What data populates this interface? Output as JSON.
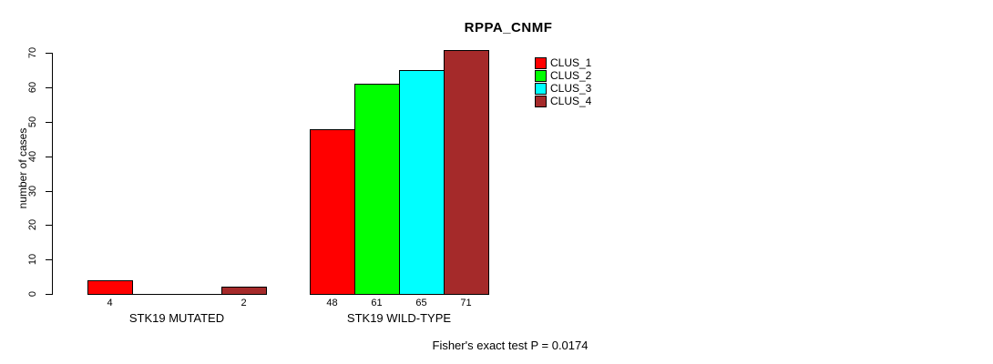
{
  "chart_data": {
    "type": "bar",
    "title": "RPPA_CNMF",
    "ylabel": "number of cases",
    "xlabel": "",
    "ylim": [
      0,
      70
    ],
    "yticks": [
      0,
      10,
      20,
      30,
      40,
      50,
      60,
      70
    ],
    "grid": false,
    "legend_position": "top-right",
    "series": [
      {
        "name": "CLUS_1",
        "color": "#ff0000"
      },
      {
        "name": "CLUS_2",
        "color": "#00ff00"
      },
      {
        "name": "CLUS_3",
        "color": "#00ffff"
      },
      {
        "name": "CLUS_4",
        "color": "#a52a2a"
      }
    ],
    "groups": [
      {
        "label": "STK19 MUTATED",
        "values": [
          4,
          0,
          0,
          2
        ],
        "value_labels": [
          "4",
          "",
          "",
          "2"
        ]
      },
      {
        "label": "STK19 WILD-TYPE",
        "values": [
          48,
          61,
          65,
          71
        ],
        "value_labels": [
          "48",
          "61",
          "65",
          "71"
        ]
      }
    ],
    "annotation": "Fisher's exact test P = 0.0174"
  }
}
